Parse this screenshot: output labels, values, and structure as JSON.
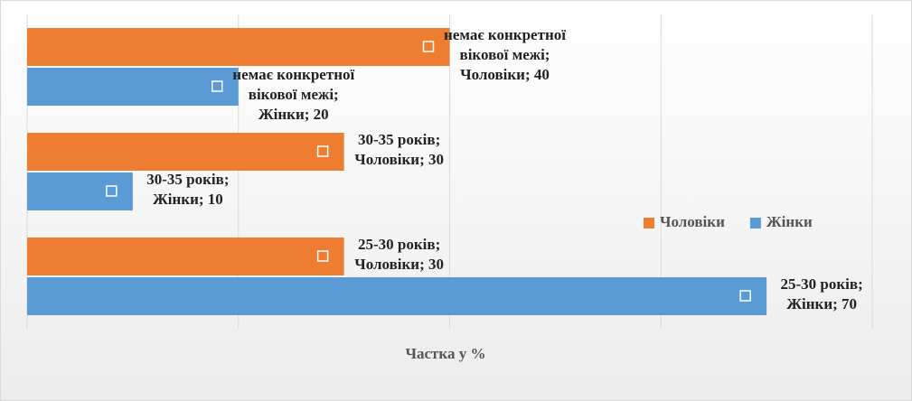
{
  "chart_data": {
    "type": "barh",
    "categories": [
      "25-30 років",
      "30-35 років",
      "немає конкретної вікової межі"
    ],
    "series": [
      {
        "name": "Чоловіки",
        "color": "#ed7d31",
        "values": [
          30,
          30,
          40
        ],
        "value_labels": [
          "25-30 років; Чоловіки; 30",
          "30-35 років; Чоловіки; 30",
          "немає конкретної вікової межі; Чоловіки; 40"
        ]
      },
      {
        "name": "Жінки",
        "color": "#5b9bd5",
        "values": [
          70,
          10,
          20
        ],
        "value_labels": [
          "25-30 років; Жінки; 70",
          "30-35 років; Жінки; 10",
          "немає конкретної вікової межі; Жінки; 20"
        ]
      }
    ],
    "xlabel": "Частка у %",
    "xlim": [
      0,
      80
    ],
    "xticks": [
      0,
      20,
      40,
      60,
      80
    ],
    "grid": true,
    "legend": "right"
  }
}
